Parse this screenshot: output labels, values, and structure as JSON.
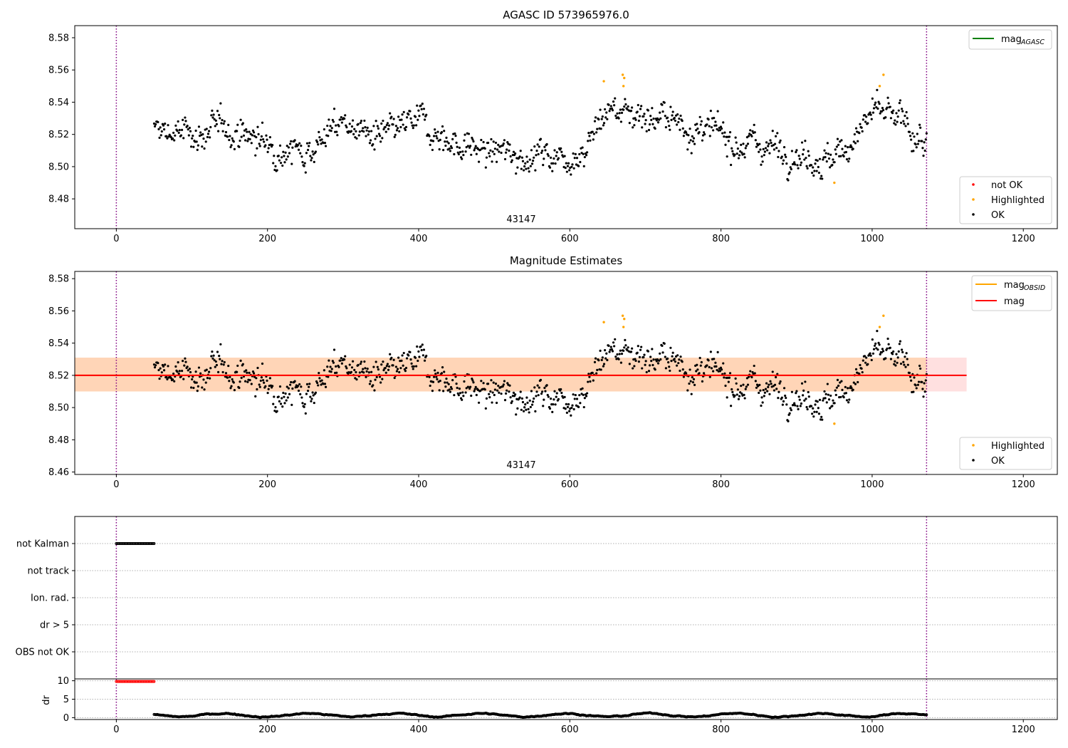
{
  "chart_data": [
    {
      "type": "scatter",
      "title": "AGASC ID 573965976.0",
      "inset_label": "43147",
      "xlim": [
        -55,
        1245
      ],
      "ylim": [
        8.4615,
        8.5875
      ],
      "x_ticks": [
        0,
        200,
        400,
        600,
        800,
        1000,
        1200
      ],
      "x_tick_labels": [
        "0",
        "200",
        "400",
        "600",
        "800",
        "1000",
        "1200"
      ],
      "y_ticks": [
        8.48,
        8.5,
        8.52,
        8.54,
        8.56,
        8.58
      ],
      "y_tick_labels": [
        "8.48",
        "8.50",
        "8.52",
        "8.54",
        "8.56",
        "8.58"
      ],
      "vlines": [
        0,
        1072
      ],
      "legend_upper": [
        {
          "label_main": "mag",
          "label_sub": "AGASC",
          "color": "#008000",
          "style": "line"
        }
      ],
      "legend_lower": [
        {
          "label": "not OK",
          "color": "#ff0000",
          "style": "dot"
        },
        {
          "label": "Highlighted",
          "color": "#ffa500",
          "style": "dot"
        },
        {
          "label": "OK",
          "color": "#000000",
          "style": "dot"
        }
      ],
      "series": [
        {
          "name": "OK",
          "color": "#000000",
          "x_range": [
            50,
            1072
          ],
          "n_points": 1000,
          "y_waypoints": [
            [
              50,
              8.522
            ],
            [
              100,
              8.52
            ],
            [
              150,
              8.524
            ],
            [
              200,
              8.514
            ],
            [
              250,
              8.51
            ],
            [
              300,
              8.528
            ],
            [
              350,
              8.516
            ],
            [
              400,
              8.528
            ],
            [
              450,
              8.514
            ],
            [
              500,
              8.508
            ],
            [
              550,
              8.508
            ],
            [
              600,
              8.507
            ],
            [
              620,
              8.512
            ],
            [
              650,
              8.536
            ],
            [
              700,
              8.533
            ],
            [
              750,
              8.526
            ],
            [
              800,
              8.518
            ],
            [
              850,
              8.514
            ],
            [
              900,
              8.51
            ],
            [
              950,
              8.503
            ],
            [
              1000,
              8.533
            ],
            [
              1040,
              8.527
            ],
            [
              1072,
              8.512
            ]
          ]
        },
        {
          "name": "Highlighted",
          "color": "#ffa500",
          "points": [
            [
              645,
              8.553
            ],
            [
              670,
              8.557
            ],
            [
              672,
              8.555
            ],
            [
              671,
              8.55
            ],
            [
              950,
              8.49
            ],
            [
              1010,
              8.55
            ],
            [
              1015,
              8.557
            ]
          ]
        }
      ]
    },
    {
      "type": "scatter",
      "title": "Magnitude Estimates",
      "inset_label": "43147",
      "xlim": [
        -55,
        1245
      ],
      "ylim": [
        8.4585,
        8.5845
      ],
      "x_ticks": [
        0,
        200,
        400,
        600,
        800,
        1000,
        1200
      ],
      "x_tick_labels": [
        "0",
        "200",
        "400",
        "600",
        "800",
        "1000",
        "1200"
      ],
      "y_ticks": [
        8.46,
        8.48,
        8.5,
        8.52,
        8.54,
        8.56,
        8.58
      ],
      "y_tick_labels": [
        "8.46",
        "8.48",
        "8.50",
        "8.52",
        "8.54",
        "8.56",
        "8.58"
      ],
      "vlines": [
        0,
        1072
      ],
      "mag_line": 8.52,
      "mag_band": [
        8.51,
        8.531
      ],
      "mag_obsid_band": [
        8.51,
        8.531
      ],
      "mag_obsid_range": [
        -55,
        1072
      ],
      "mag_band_range": [
        -55,
        1125
      ],
      "legend_upper": [
        {
          "label_main": "mag",
          "label_sub": "OBSID",
          "color": "#ffa500",
          "style": "line"
        },
        {
          "label_main": "mag",
          "label_sub": "",
          "color": "#ff0000",
          "style": "line"
        }
      ],
      "legend_lower": [
        {
          "label": "Highlighted",
          "color": "#ffa500",
          "style": "dot"
        },
        {
          "label": "OK",
          "color": "#000000",
          "style": "dot"
        }
      ]
    },
    {
      "type": "scatter",
      "title": "",
      "xlim": [
        -55,
        1245
      ],
      "x_ticks": [
        0,
        200,
        400,
        600,
        800,
        1000,
        1200
      ],
      "x_tick_labels": [
        "0",
        "200",
        "400",
        "600",
        "800",
        "1000",
        "1200"
      ],
      "vlines": [
        0,
        1072
      ],
      "flag_rows": [
        "not Kalman",
        "not track",
        "Ion. rad.",
        "dr > 5",
        "OBS not OK"
      ],
      "flag_points": [
        {
          "row": "not Kalman",
          "x_range": [
            0,
            50
          ],
          "n_points": 40,
          "color": "#000000"
        }
      ],
      "dr_ylabel": "dr",
      "dr_ylim": [
        -0.5,
        10.5
      ],
      "dr_ticks": [
        0,
        5,
        10
      ],
      "dr_tick_labels": [
        "0",
        "5",
        "10"
      ],
      "dr_series": [
        {
          "name": "dr",
          "color": "#000000",
          "x_range": [
            50,
            1072
          ],
          "n_points": 1000,
          "y_mean": 0.7
        },
        {
          "name": "dr clipped",
          "color": "#ff0000",
          "x_range": [
            0,
            50
          ],
          "n_points": 40,
          "y": 9.8
        }
      ]
    }
  ]
}
